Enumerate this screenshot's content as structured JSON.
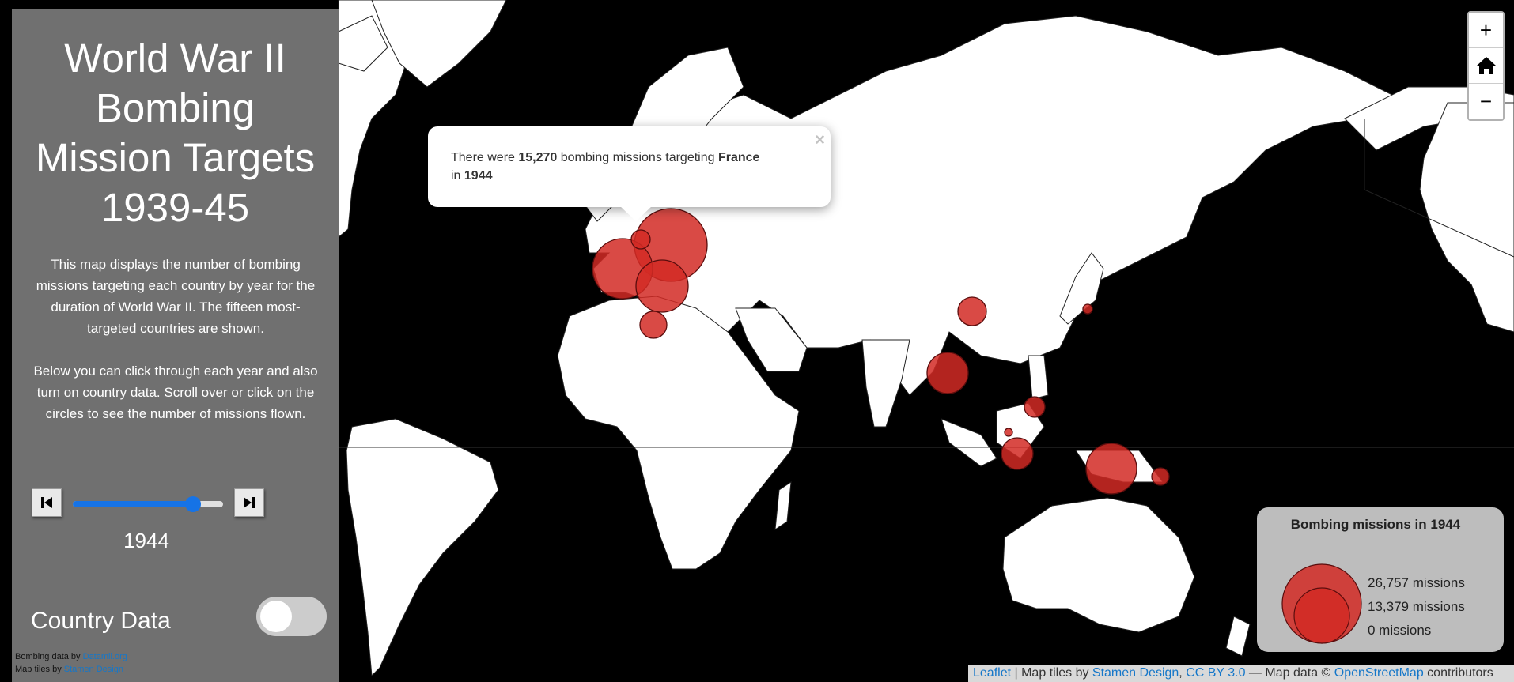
{
  "panel": {
    "title_lines": [
      "World War II",
      "Bombing",
      "Mission Targets",
      "1939-45"
    ],
    "description1": "This map displays the number of bombing missions targeting each country by year for the duration of World War II. The fifteen most-targeted countries are shown.",
    "description2": "Below you can click through each year and also turn on country data. Scroll over or click on the circles to see the number of missions flown.",
    "slider": {
      "year": "1944",
      "min_year": 1939,
      "max_year": 1945,
      "current_year": 1944
    },
    "country_data_label": "Country Data",
    "country_data_on": false,
    "credits": {
      "bombing_prefix": "Bombing data by ",
      "bombing_link": "Datamil.org",
      "tiles_prefix": "Map tiles by ",
      "tiles_link": "Stamen Design"
    }
  },
  "popup": {
    "pre": "There were ",
    "count": "15,270",
    "mid": " bombing missions targeting ",
    "country": "France",
    "in": " in ",
    "year": "1944",
    "close": "×"
  },
  "zoom": {
    "in": "+",
    "out": "−",
    "home_icon": "home-icon"
  },
  "legend": {
    "title": "Bombing missions in 1944",
    "max": "26,757 missions",
    "mid": "13,379 missions",
    "min": "0 missions"
  },
  "attribution": {
    "leaflet": "Leaflet",
    "sep": " | Map tiles by ",
    "stamen": "Stamen Design",
    "comma": ", ",
    "license": "CC BY 3.0",
    "mapdata": " — Map data © ",
    "osm": "OpenStreetMap",
    "contributors": " contributors"
  },
  "colors": {
    "bubble": "#d22a25",
    "slider": "#1673e6",
    "land": "#ffffff",
    "water": "#000000"
  }
}
